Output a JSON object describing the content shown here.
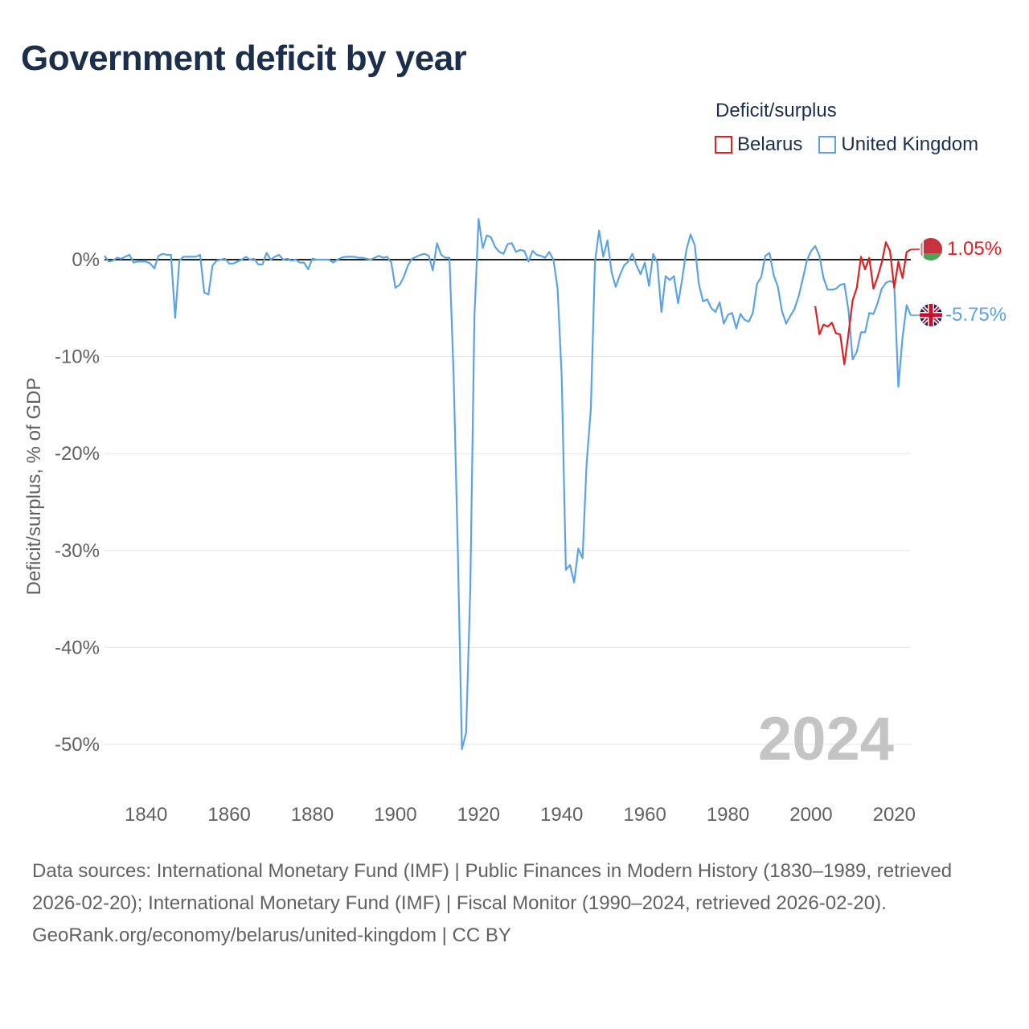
{
  "title": "Government deficit by year",
  "legend": {
    "title": "Deficit/surplus",
    "items": [
      {
        "label": "Belarus",
        "color": "#e11f1f"
      },
      {
        "label": "United Kingdom",
        "color": "#5ba3e6"
      }
    ]
  },
  "year_watermark": "2024",
  "footer": {
    "sources": "Data sources: International Monetary Fund (IMF) | Public Finances in Modern History (1830–1989, retrieved 2026-02-20); International Monetary Fund (IMF) | Fiscal Monitor (1990–2024, retrieved 2026-02-20).",
    "attribution": "GeoRank.org/economy/belarus/united-kingdom | CC BY"
  },
  "chart_data": {
    "type": "line",
    "title": "Government deficit by year",
    "ylabel": "Deficit/surplus, % of GDP",
    "xlabel": "",
    "xlim": [
      1830,
      2024
    ],
    "ylim": [
      -52,
      5
    ],
    "x_ticks": [
      1840,
      1860,
      1880,
      1900,
      1920,
      1940,
      1960,
      1980,
      2000,
      2020
    ],
    "y_ticks": [
      0,
      -10,
      -20,
      -30,
      -40,
      -50
    ],
    "y_tick_labels": [
      "0%",
      "-10%",
      "-20%",
      "-30%",
      "-40%",
      "-50%"
    ],
    "series": [
      {
        "name": "United Kingdom",
        "color": "#5ba3e6",
        "end_label": "-5.75%",
        "points": [
          [
            1830,
            0.4
          ],
          [
            1831,
            -0.2
          ],
          [
            1832,
            -0.1
          ],
          [
            1833,
            0.2
          ],
          [
            1834,
            0.1
          ],
          [
            1835,
            0.3
          ],
          [
            1836,
            0.5
          ],
          [
            1837,
            -0.3
          ],
          [
            1838,
            -0.2
          ],
          [
            1839,
            -0.2
          ],
          [
            1840,
            -0.2
          ],
          [
            1841,
            -0.4
          ],
          [
            1842,
            -0.9
          ],
          [
            1843,
            0.4
          ],
          [
            1844,
            0.6
          ],
          [
            1845,
            0.5
          ],
          [
            1846,
            0.5
          ],
          [
            1847,
            -6.0
          ],
          [
            1848,
            -0.1
          ],
          [
            1849,
            0.3
          ],
          [
            1850,
            0.3
          ],
          [
            1851,
            0.3
          ],
          [
            1852,
            0.3
          ],
          [
            1853,
            0.5
          ],
          [
            1854,
            -3.4
          ],
          [
            1855,
            -3.6
          ],
          [
            1856,
            -0.6
          ],
          [
            1857,
            -0.1
          ],
          [
            1858,
            0.0
          ],
          [
            1859,
            0.1
          ],
          [
            1860,
            -0.4
          ],
          [
            1861,
            -0.4
          ],
          [
            1862,
            -0.2
          ],
          [
            1863,
            0.0
          ],
          [
            1864,
            0.3
          ],
          [
            1865,
            0.0
          ],
          [
            1866,
            0.1
          ],
          [
            1867,
            -0.5
          ],
          [
            1868,
            -0.5
          ],
          [
            1869,
            0.7
          ],
          [
            1870,
            0.0
          ],
          [
            1871,
            0.3
          ],
          [
            1872,
            0.5
          ],
          [
            1873,
            0.0
          ],
          [
            1874,
            0.1
          ],
          [
            1875,
            -0.1
          ],
          [
            1876,
            0.0
          ],
          [
            1877,
            -0.3
          ],
          [
            1878,
            -0.3
          ],
          [
            1879,
            -1.0
          ],
          [
            1880,
            0.1
          ],
          [
            1881,
            0.0
          ],
          [
            1882,
            0.0
          ],
          [
            1883,
            0.0
          ],
          [
            1884,
            0.0
          ],
          [
            1885,
            -0.3
          ],
          [
            1886,
            0.0
          ],
          [
            1887,
            0.2
          ],
          [
            1888,
            0.3
          ],
          [
            1889,
            0.3
          ],
          [
            1890,
            0.3
          ],
          [
            1891,
            0.2
          ],
          [
            1892,
            0.2
          ],
          [
            1893,
            0.1
          ],
          [
            1894,
            0.0
          ],
          [
            1895,
            0.2
          ],
          [
            1896,
            0.4
          ],
          [
            1897,
            0.2
          ],
          [
            1898,
            0.3
          ],
          [
            1899,
            -0.3
          ],
          [
            1900,
            -2.9
          ],
          [
            1901,
            -2.6
          ],
          [
            1902,
            -1.8
          ],
          [
            1903,
            -0.6
          ],
          [
            1904,
            0.1
          ],
          [
            1905,
            0.3
          ],
          [
            1906,
            0.5
          ],
          [
            1907,
            0.6
          ],
          [
            1908,
            0.4
          ],
          [
            1909,
            -1.1
          ],
          [
            1910,
            1.7
          ],
          [
            1911,
            0.5
          ],
          [
            1912,
            0.2
          ],
          [
            1913,
            0.2
          ],
          [
            1914,
            -12.0
          ],
          [
            1915,
            -30.0
          ],
          [
            1916,
            -50.5
          ],
          [
            1917,
            -48.8
          ],
          [
            1918,
            -34.0
          ],
          [
            1919,
            -6.0
          ],
          [
            1920,
            4.2
          ],
          [
            1921,
            1.2
          ],
          [
            1922,
            2.5
          ],
          [
            1923,
            2.3
          ],
          [
            1924,
            1.3
          ],
          [
            1925,
            0.8
          ],
          [
            1926,
            0.6
          ],
          [
            1927,
            1.6
          ],
          [
            1928,
            1.7
          ],
          [
            1929,
            0.8
          ],
          [
            1930,
            1.0
          ],
          [
            1931,
            0.9
          ],
          [
            1932,
            -0.2
          ],
          [
            1933,
            0.9
          ],
          [
            1934,
            0.5
          ],
          [
            1935,
            0.4
          ],
          [
            1936,
            0.2
          ],
          [
            1937,
            0.8
          ],
          [
            1938,
            0.0
          ],
          [
            1939,
            -2.9
          ],
          [
            1940,
            -12.0
          ],
          [
            1941,
            -32.0
          ],
          [
            1942,
            -31.5
          ],
          [
            1943,
            -33.3
          ],
          [
            1944,
            -29.8
          ],
          [
            1945,
            -30.8
          ],
          [
            1946,
            -21.0
          ],
          [
            1947,
            -15.5
          ],
          [
            1948,
            -0.2
          ],
          [
            1949,
            3.0
          ],
          [
            1950,
            0.3
          ],
          [
            1951,
            2.0
          ],
          [
            1952,
            -1.3
          ],
          [
            1953,
            -2.8
          ],
          [
            1954,
            -1.6
          ],
          [
            1955,
            -0.6
          ],
          [
            1956,
            -0.2
          ],
          [
            1957,
            0.6
          ],
          [
            1958,
            -0.6
          ],
          [
            1959,
            -1.5
          ],
          [
            1960,
            -0.3
          ],
          [
            1961,
            -2.7
          ],
          [
            1962,
            0.6
          ],
          [
            1963,
            -0.3
          ],
          [
            1964,
            -5.4
          ],
          [
            1965,
            -1.7
          ],
          [
            1966,
            -2.1
          ],
          [
            1967,
            -1.7
          ],
          [
            1968,
            -4.5
          ],
          [
            1969,
            -2.0
          ],
          [
            1970,
            1.0
          ],
          [
            1971,
            2.6
          ],
          [
            1972,
            1.5
          ],
          [
            1973,
            -2.5
          ],
          [
            1974,
            -4.3
          ],
          [
            1975,
            -4.1
          ],
          [
            1976,
            -5.0
          ],
          [
            1977,
            -5.4
          ],
          [
            1978,
            -4.4
          ],
          [
            1979,
            -6.6
          ],
          [
            1980,
            -5.7
          ],
          [
            1981,
            -5.5
          ],
          [
            1982,
            -7.1
          ],
          [
            1983,
            -5.6
          ],
          [
            1984,
            -6.2
          ],
          [
            1985,
            -6.4
          ],
          [
            1986,
            -5.5
          ],
          [
            1987,
            -2.5
          ],
          [
            1988,
            -1.8
          ],
          [
            1989,
            0.4
          ],
          [
            1990,
            0.7
          ],
          [
            1991,
            -1.6
          ],
          [
            1992,
            -2.8
          ],
          [
            1993,
            -5.3
          ],
          [
            1994,
            -6.6
          ],
          [
            1995,
            -5.8
          ],
          [
            1996,
            -5.1
          ],
          [
            1997,
            -3.8
          ],
          [
            1998,
            -2.0
          ],
          [
            1999,
            -0.1
          ],
          [
            2000,
            0.9
          ],
          [
            2001,
            1.4
          ],
          [
            2002,
            0.4
          ],
          [
            2003,
            -1.9
          ],
          [
            2004,
            -3.1
          ],
          [
            2005,
            -3.1
          ],
          [
            2006,
            -3.0
          ],
          [
            2007,
            -2.6
          ],
          [
            2008,
            -2.5
          ],
          [
            2009,
            -5.2
          ],
          [
            2010,
            -10.3
          ],
          [
            2011,
            -9.5
          ],
          [
            2012,
            -7.5
          ],
          [
            2013,
            -7.5
          ],
          [
            2014,
            -5.5
          ],
          [
            2015,
            -5.6
          ],
          [
            2016,
            -4.5
          ],
          [
            2017,
            -3.0
          ],
          [
            2018,
            -2.4
          ],
          [
            2019,
            -2.2
          ],
          [
            2020,
            -2.4
          ],
          [
            2021,
            -13.1
          ],
          [
            2022,
            -8.0
          ],
          [
            2023,
            -4.7
          ],
          [
            2024,
            -5.75
          ]
        ]
      },
      {
        "name": "Belarus",
        "color": "#e11f1f",
        "end_label": "1.05%",
        "points": [
          [
            2001,
            -4.8
          ],
          [
            2002,
            -7.7
          ],
          [
            2003,
            -6.7
          ],
          [
            2004,
            -6.9
          ],
          [
            2005,
            -6.5
          ],
          [
            2006,
            -7.6
          ],
          [
            2007,
            -7.7
          ],
          [
            2008,
            -10.8
          ],
          [
            2009,
            -7.7
          ],
          [
            2010,
            -4.2
          ],
          [
            2011,
            -2.9
          ],
          [
            2012,
            0.3
          ],
          [
            2013,
            -1.0
          ],
          [
            2014,
            0.2
          ],
          [
            2015,
            -3.0
          ],
          [
            2016,
            -1.8
          ],
          [
            2017,
            -0.3
          ],
          [
            2018,
            1.8
          ],
          [
            2019,
            0.9
          ],
          [
            2020,
            -2.9
          ],
          [
            2021,
            -0.2
          ],
          [
            2022,
            -1.9
          ],
          [
            2023,
            0.8
          ],
          [
            2024,
            1.05
          ]
        ]
      }
    ]
  }
}
